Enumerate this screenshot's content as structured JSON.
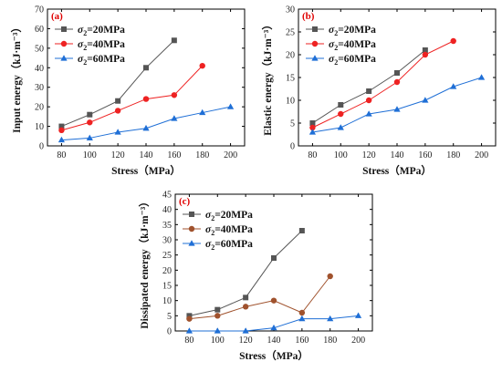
{
  "colors": {
    "panel_tag": "#e00000"
  },
  "legend": {
    "symbol": "σ",
    "subscript": "2",
    "entries": [
      "=20MPa",
      "=40MPa",
      "=60MPa"
    ]
  },
  "chart_data": [
    {
      "panel": "(a)",
      "type": "line",
      "xlabel": "Stress（MPa）",
      "ylabel": "Input energy（kJ·m⁻³）",
      "xlim": [
        70,
        210
      ],
      "ylim": [
        0,
        70
      ],
      "xticks": [
        80,
        100,
        120,
        140,
        160,
        180,
        200
      ],
      "yticks": [
        0,
        10,
        20,
        30,
        40,
        50,
        60,
        70
      ],
      "legend_position": "top-left",
      "series": [
        {
          "name": "σ2=20MPa",
          "color": "#555555",
          "marker": "square",
          "x": [
            80,
            100,
            120,
            140,
            160
          ],
          "y": [
            10,
            16,
            23,
            40,
            54
          ]
        },
        {
          "name": "σ2=40MPa",
          "color": "#ee2222",
          "marker": "circle",
          "x": [
            80,
            100,
            120,
            140,
            160,
            180
          ],
          "y": [
            8,
            12,
            18,
            24,
            26,
            41
          ]
        },
        {
          "name": "σ2=60MPa",
          "color": "#1f6fd6",
          "marker": "triangle",
          "x": [
            80,
            100,
            120,
            140,
            160,
            180,
            200
          ],
          "y": [
            3,
            4,
            7,
            9,
            14,
            17,
            20
          ]
        }
      ]
    },
    {
      "panel": "(b)",
      "type": "line",
      "xlabel": "Stress（MPa）",
      "ylabel": "Elastic energy（kJ·m⁻³）",
      "xlim": [
        70,
        210
      ],
      "ylim": [
        0,
        30
      ],
      "xticks": [
        80,
        100,
        120,
        140,
        160,
        180,
        200
      ],
      "yticks": [
        0,
        5,
        10,
        15,
        20,
        25,
        30
      ],
      "legend_position": "top-left",
      "series": [
        {
          "name": "σ2=20MPa",
          "color": "#555555",
          "marker": "square",
          "x": [
            80,
            100,
            120,
            140,
            160
          ],
          "y": [
            5,
            9,
            12,
            16,
            21
          ]
        },
        {
          "name": "σ2=40MPa",
          "color": "#ee2222",
          "marker": "circle",
          "x": [
            80,
            100,
            120,
            140,
            160,
            180
          ],
          "y": [
            4,
            7,
            10,
            14,
            20,
            23
          ]
        },
        {
          "name": "σ2=60MPa",
          "color": "#1f6fd6",
          "marker": "triangle",
          "x": [
            80,
            100,
            120,
            140,
            160,
            180,
            200
          ],
          "y": [
            3,
            4,
            7,
            8,
            10,
            13,
            15
          ]
        }
      ]
    },
    {
      "panel": "(c)",
      "type": "line",
      "xlabel": "Stress（MPa）",
      "ylabel": "Dissipated energy（kJ·m⁻³）",
      "xlim": [
        70,
        210
      ],
      "ylim": [
        0,
        45
      ],
      "xticks": [
        80,
        100,
        120,
        140,
        160,
        180,
        200
      ],
      "yticks": [
        0,
        5,
        10,
        15,
        20,
        25,
        30,
        35,
        40,
        45
      ],
      "legend_position": "top-left",
      "series": [
        {
          "name": "σ2=20MPa",
          "color": "#555555",
          "marker": "square",
          "x": [
            80,
            100,
            120,
            140,
            160
          ],
          "y": [
            5,
            7,
            11,
            24,
            33
          ]
        },
        {
          "name": "σ2=40MPa",
          "color": "#a0522d",
          "marker": "circle",
          "x": [
            80,
            100,
            120,
            140,
            160,
            180
          ],
          "y": [
            4,
            5,
            8,
            10,
            6,
            18
          ]
        },
        {
          "name": "σ2=60MPa",
          "color": "#1f6fd6",
          "marker": "triangle",
          "x": [
            80,
            100,
            120,
            140,
            160,
            180,
            200
          ],
          "y": [
            0,
            0,
            0,
            1,
            4,
            4,
            5
          ]
        }
      ]
    }
  ]
}
